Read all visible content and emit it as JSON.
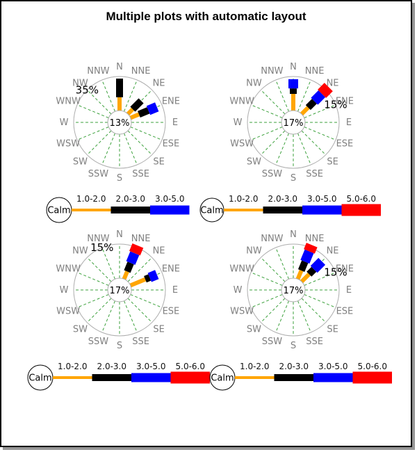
{
  "title": "Multiple plots with automatic layout",
  "calm_label": "Calm",
  "colors": {
    "background": "#ffffff",
    "border": "#000000",
    "border_shadow": "#969696",
    "spoke_green": "#3CA13C",
    "ring_gray": "#ADADAD",
    "direction_label_gray": "#7F7F7F",
    "text_black": "#000000"
  },
  "speed_classes": [
    {
      "label": "1.0-2.0",
      "color": "#FFA500"
    },
    {
      "label": "2.0-3.0",
      "color": "#000000"
    },
    {
      "label": "3.0-5.0",
      "color": "#0000FF"
    },
    {
      "label": "5.0-6.0",
      "color": "#FF0000"
    }
  ],
  "chart_data": [
    {
      "type": "windrose",
      "position": "top-left",
      "calm_center_label": "13%",
      "ring_scale_label": "35%",
      "ring_scale_label_direction": "NW",
      "direction_labels": [
        "N",
        "NNE",
        "NE",
        "ENE",
        "E",
        "ESE",
        "SE",
        "SSE",
        "S",
        "SSW",
        "SW",
        "WSW",
        "W",
        "WNW",
        "NW",
        "NNW"
      ],
      "bars": [
        {
          "direction": "N",
          "segments": [
            {
              "class": "1.0-2.0",
              "from": 0,
              "to": 0.39
            },
            {
              "class": "2.0-3.0",
              "from": 0.39,
              "to": 0.94
            }
          ]
        },
        {
          "direction": "NE",
          "segments": [
            {
              "class": "1.0-2.0",
              "from": 0,
              "to": 0.2
            },
            {
              "class": "2.0-3.0",
              "from": 0.2,
              "to": 0.55
            }
          ]
        },
        {
          "direction": "ENE",
          "segments": [
            {
              "class": "1.0-2.0",
              "from": 0,
              "to": 0.27
            },
            {
              "class": "2.0-3.0",
              "from": 0.27,
              "to": 0.57
            },
            {
              "class": "3.0-5.0",
              "from": 0.57,
              "to": 0.84
            }
          ]
        }
      ],
      "legend_classes": [
        "1.0-2.0",
        "2.0-3.0",
        "3.0-5.0"
      ]
    },
    {
      "type": "windrose",
      "position": "top-right",
      "calm_center_label": "17%",
      "ring_scale_label": "15%",
      "ring_scale_label_direction": "ENE",
      "direction_labels": [
        "N",
        "NNE",
        "NE",
        "ENE",
        "E",
        "ESE",
        "SE",
        "SSE",
        "S",
        "SSW",
        "SW",
        "WSW",
        "W",
        "WNW",
        "NW",
        "NNW"
      ],
      "bars": [
        {
          "direction": "N",
          "segments": [
            {
              "class": "1.0-2.0",
              "from": 0,
              "to": 0.49
            },
            {
              "class": "2.0-3.0",
              "from": 0.49,
              "to": 0.65
            },
            {
              "class": "3.0-5.0",
              "from": 0.65,
              "to": 0.92
            }
          ]
        },
        {
          "direction": "NE",
          "segments": [
            {
              "class": "1.0-2.0",
              "from": 0,
              "to": 0.27
            },
            {
              "class": "2.0-3.0",
              "from": 0.27,
              "to": 0.53
            },
            {
              "class": "3.0-5.0",
              "from": 0.53,
              "to": 0.84
            },
            {
              "class": "5.0-6.0",
              "from": 0.84,
              "to": 1.12
            }
          ]
        }
      ],
      "legend_classes": [
        "1.0-2.0",
        "2.0-3.0",
        "3.0-5.0",
        "5.0-6.0"
      ]
    },
    {
      "type": "windrose",
      "position": "bottom-left",
      "calm_center_label": "17%",
      "ring_scale_label": "15%",
      "ring_scale_label_direction": "NNW",
      "direction_labels": [
        "N",
        "NNE",
        "NE",
        "ENE",
        "E",
        "ESE",
        "SE",
        "SSE",
        "S",
        "SSW",
        "SW",
        "WSW",
        "W",
        "WNW",
        "NW",
        "NNW"
      ],
      "bars": [
        {
          "direction": "NNE",
          "segments": [
            {
              "class": "1.0-2.0",
              "from": 0,
              "to": 0.24
            },
            {
              "class": "2.0-3.0",
              "from": 0.24,
              "to": 0.51
            },
            {
              "class": "3.0-5.0",
              "from": 0.51,
              "to": 0.82
            },
            {
              "class": "5.0-6.0",
              "from": 0.82,
              "to": 1.06
            }
          ]
        },
        {
          "direction": "ENE",
          "segments": [
            {
              "class": "1.0-2.0",
              "from": 0,
              "to": 0.47
            },
            {
              "class": "2.0-3.0",
              "from": 0.47,
              "to": 0.61
            },
            {
              "class": "3.0-5.0",
              "from": 0.61,
              "to": 0.84
            }
          ]
        }
      ],
      "legend_classes": [
        "1.0-2.0",
        "2.0-3.0",
        "3.0-5.0",
        "5.0-6.0"
      ]
    },
    {
      "type": "windrose",
      "position": "bottom-right",
      "calm_center_label": "17%",
      "ring_scale_label": "15%",
      "ring_scale_label_direction": "ENE",
      "direction_labels": [
        "N",
        "NNE",
        "NE",
        "ENE",
        "E",
        "ESE",
        "SE",
        "SSE",
        "S",
        "SSW",
        "SW",
        "WSW",
        "W",
        "WNW",
        "NW",
        "NNW"
      ],
      "bars": [
        {
          "direction": "NNE",
          "segments": [
            {
              "class": "1.0-2.0",
              "from": 0,
              "to": 0.27
            },
            {
              "class": "2.0-3.0",
              "from": 0.27,
              "to": 0.55
            },
            {
              "class": "3.0-5.0",
              "from": 0.55,
              "to": 0.88
            },
            {
              "class": "5.0-6.0",
              "from": 0.88,
              "to": 1.08
            }
          ]
        },
        {
          "direction": "NE",
          "segments": [
            {
              "class": "1.0-2.0",
              "from": 0,
              "to": 0.31
            },
            {
              "class": "2.0-3.0",
              "from": 0.31,
              "to": 0.51
            },
            {
              "class": "3.0-5.0",
              "from": 0.51,
              "to": 0.84
            }
          ]
        }
      ],
      "legend_classes": [
        "1.0-2.0",
        "2.0-3.0",
        "3.0-5.0",
        "5.0-6.0"
      ]
    }
  ]
}
